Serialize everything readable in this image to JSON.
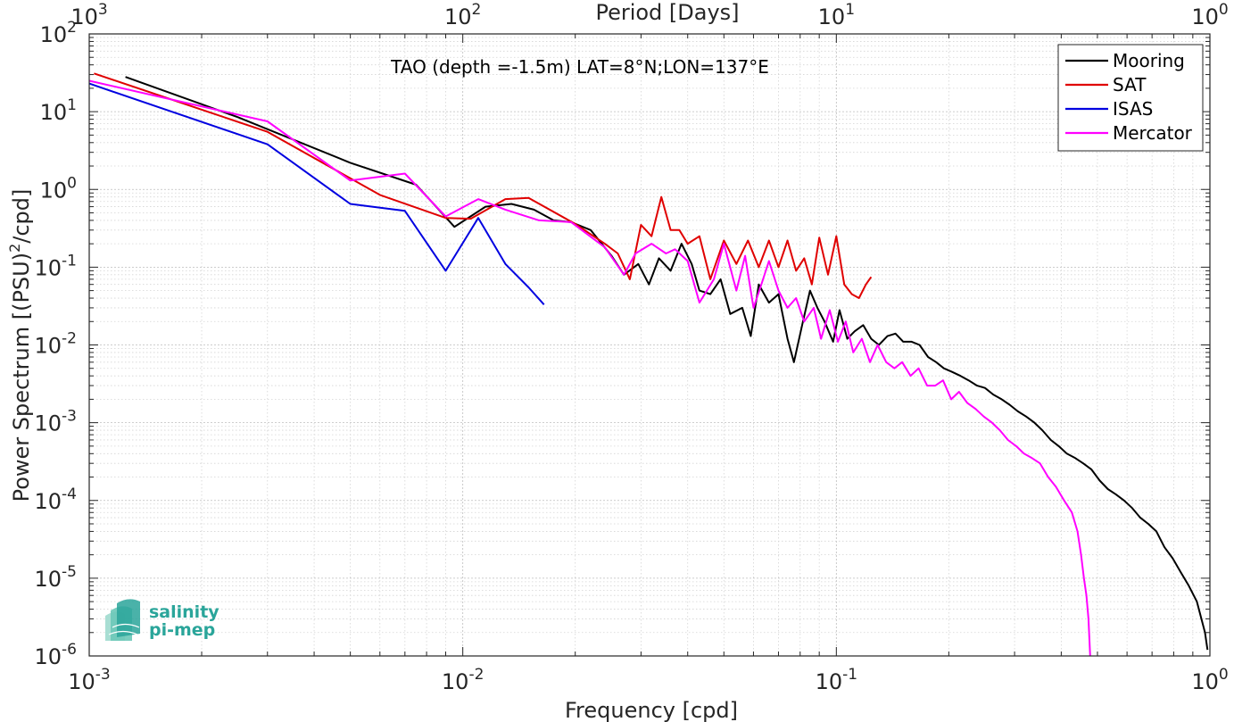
{
  "chart_data": {
    "type": "line",
    "title": "TAO (depth =-1.5m) LAT=8°N;LON=137°E",
    "xlabel": "Frequency [cpd]",
    "ylabel": "Power Spectrum [(PSU)²/cpd]",
    "ylabel_parts": {
      "pre": "Power Spectrum [(PSU)",
      "sup": "2",
      "post": "/cpd]"
    },
    "x_top_label": "Period [Days]",
    "x_scale": "log",
    "y_scale": "log",
    "xlim": [
      0.001,
      1
    ],
    "ylim": [
      1e-06,
      100
    ],
    "x_ticks": [
      {
        "value": 0.001,
        "base": "10",
        "exp": "-3"
      },
      {
        "value": 0.01,
        "base": "10",
        "exp": "-2"
      },
      {
        "value": 0.1,
        "base": "10",
        "exp": "-1"
      },
      {
        "value": 1,
        "base": "10",
        "exp": "0"
      }
    ],
    "x_top_ticks": [
      {
        "value": 0.001,
        "base": "10",
        "exp": "3"
      },
      {
        "value": 0.01,
        "base": "10",
        "exp": "2"
      },
      {
        "value": 0.1,
        "base": "10",
        "exp": "1"
      },
      {
        "value": 1,
        "base": "10",
        "exp": "0"
      }
    ],
    "y_ticks": [
      {
        "value": 100,
        "base": "10",
        "exp": "2"
      },
      {
        "value": 10,
        "base": "10",
        "exp": "1"
      },
      {
        "value": 1,
        "base": "10",
        "exp": "0"
      },
      {
        "value": 0.1,
        "base": "10",
        "exp": "-1"
      },
      {
        "value": 0.01,
        "base": "10",
        "exp": "-2"
      },
      {
        "value": 0.001,
        "base": "10",
        "exp": "-3"
      },
      {
        "value": 0.0001,
        "base": "10",
        "exp": "-4"
      },
      {
        "value": 1e-05,
        "base": "10",
        "exp": "-5"
      },
      {
        "value": 1e-06,
        "base": "10",
        "exp": "-6"
      }
    ],
    "grid": true,
    "legend_position": "top-right",
    "series": [
      {
        "name": "Mooring",
        "color": "#000000",
        "x": [
          0.00125,
          0.0025,
          0.005,
          0.0075,
          0.0095,
          0.0115,
          0.0135,
          0.0155,
          0.0175,
          0.0195,
          0.022,
          0.025,
          0.027,
          0.0295,
          0.0315,
          0.0335,
          0.036,
          0.0385,
          0.041,
          0.043,
          0.046,
          0.049,
          0.052,
          0.056,
          0.059,
          0.062,
          0.066,
          0.07,
          0.074,
          0.077,
          0.081,
          0.085,
          0.089,
          0.093,
          0.098,
          0.102,
          0.107,
          0.112,
          0.118,
          0.124,
          0.13,
          0.137,
          0.144,
          0.151,
          0.159,
          0.167,
          0.176,
          0.185,
          0.194,
          0.204,
          0.215,
          0.226,
          0.238,
          0.25,
          0.263,
          0.277,
          0.291,
          0.306,
          0.322,
          0.339,
          0.356,
          0.375,
          0.394,
          0.414,
          0.436,
          0.458,
          0.482,
          0.507,
          0.533,
          0.56,
          0.589,
          0.619,
          0.651,
          0.684,
          0.719,
          0.756,
          0.795,
          0.835,
          0.878,
          0.923,
          0.97,
          0.985
        ],
        "y": [
          28,
          8.5,
          2.2,
          1.15,
          0.33,
          0.6,
          0.65,
          0.55,
          0.4,
          0.38,
          0.3,
          0.14,
          0.08,
          0.11,
          0.06,
          0.13,
          0.09,
          0.2,
          0.11,
          0.05,
          0.045,
          0.07,
          0.025,
          0.03,
          0.013,
          0.06,
          0.035,
          0.045,
          0.012,
          0.006,
          0.018,
          0.05,
          0.03,
          0.02,
          0.011,
          0.028,
          0.012,
          0.015,
          0.018,
          0.012,
          0.01,
          0.013,
          0.014,
          0.011,
          0.011,
          0.01,
          0.007,
          0.006,
          0.005,
          0.0045,
          0.004,
          0.0035,
          0.003,
          0.0028,
          0.0023,
          0.002,
          0.0017,
          0.0014,
          0.0012,
          0.001,
          0.0008,
          0.0006,
          0.0005,
          0.0004,
          0.00035,
          0.0003,
          0.00025,
          0.00018,
          0.00014,
          0.00012,
          0.0001,
          8e-05,
          6e-05,
          5e-05,
          4e-05,
          2.5e-05,
          1.8e-05,
          1.2e-05,
          8e-06,
          5e-06,
          2e-06,
          1.2e-06
        ]
      },
      {
        "name": "SAT",
        "color": "#e00000",
        "x": [
          0.00103,
          0.003,
          0.006,
          0.009,
          0.0105,
          0.013,
          0.015,
          0.02,
          0.024,
          0.026,
          0.028,
          0.03,
          0.032,
          0.034,
          0.036,
          0.038,
          0.04,
          0.043,
          0.046,
          0.05,
          0.054,
          0.058,
          0.062,
          0.066,
          0.07,
          0.074,
          0.078,
          0.082,
          0.086,
          0.09,
          0.095,
          0.1,
          0.105,
          0.11,
          0.115,
          0.12,
          0.124
        ],
        "y": [
          31,
          5.5,
          0.85,
          0.43,
          0.42,
          0.75,
          0.78,
          0.36,
          0.2,
          0.15,
          0.07,
          0.35,
          0.25,
          0.8,
          0.3,
          0.3,
          0.2,
          0.25,
          0.07,
          0.22,
          0.11,
          0.22,
          0.1,
          0.22,
          0.1,
          0.22,
          0.09,
          0.13,
          0.06,
          0.24,
          0.08,
          0.25,
          0.06,
          0.045,
          0.04,
          0.06,
          0.075
        ]
      },
      {
        "name": "ISAS",
        "color": "#0000e0",
        "x": [
          0.001,
          0.003,
          0.005,
          0.007,
          0.009,
          0.011,
          0.013,
          0.015,
          0.0165
        ],
        "y": [
          23,
          3.8,
          0.65,
          0.53,
          0.09,
          0.43,
          0.11,
          0.055,
          0.033
        ]
      },
      {
        "name": "Mercator",
        "color": "#ff00ff",
        "x": [
          0.001,
          0.003,
          0.005,
          0.007,
          0.009,
          0.011,
          0.013,
          0.016,
          0.0195,
          0.024,
          0.027,
          0.029,
          0.032,
          0.035,
          0.037,
          0.04,
          0.043,
          0.047,
          0.05,
          0.054,
          0.057,
          0.06,
          0.063,
          0.066,
          0.07,
          0.074,
          0.078,
          0.082,
          0.087,
          0.091,
          0.096,
          0.101,
          0.106,
          0.111,
          0.117,
          0.123,
          0.129,
          0.136,
          0.143,
          0.15,
          0.158,
          0.166,
          0.175,
          0.184,
          0.193,
          0.203,
          0.213,
          0.224,
          0.236,
          0.248,
          0.261,
          0.274,
          0.288,
          0.303,
          0.318,
          0.334,
          0.351,
          0.369,
          0.387,
          0.407,
          0.427,
          0.442,
          0.452,
          0.46,
          0.467,
          0.473,
          0.478
        ],
        "y": [
          25,
          7.5,
          1.3,
          1.6,
          0.45,
          0.75,
          0.55,
          0.4,
          0.38,
          0.18,
          0.08,
          0.15,
          0.2,
          0.15,
          0.17,
          0.12,
          0.035,
          0.07,
          0.2,
          0.05,
          0.14,
          0.03,
          0.06,
          0.12,
          0.05,
          0.03,
          0.04,
          0.02,
          0.03,
          0.012,
          0.028,
          0.011,
          0.02,
          0.008,
          0.012,
          0.006,
          0.01,
          0.006,
          0.005,
          0.006,
          0.004,
          0.005,
          0.003,
          0.003,
          0.0035,
          0.002,
          0.0025,
          0.0018,
          0.0015,
          0.0012,
          0.001,
          0.0008,
          0.0006,
          0.0005,
          0.0004,
          0.00035,
          0.0003,
          0.0002,
          0.00015,
          0.0001,
          7e-05,
          4e-05,
          2e-05,
          1e-05,
          6e-06,
          3e-06,
          1e-06
        ]
      }
    ]
  },
  "logo": {
    "line1": "salinity",
    "line2": "pi-mep",
    "color": "#2aa59a"
  }
}
